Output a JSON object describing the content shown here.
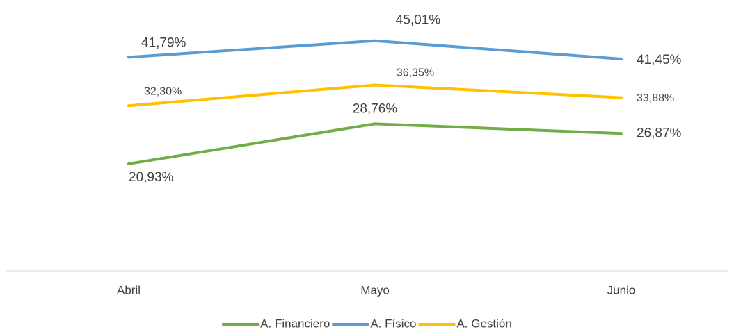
{
  "chart_data": {
    "type": "line",
    "categories": [
      "Abril",
      "Mayo",
      "Junio"
    ],
    "series": [
      {
        "name": "A. Financiero",
        "color": "#70ad47",
        "values": [
          20.93,
          28.76,
          26.87
        ],
        "value_labels": [
          "20,93%",
          "28,76%",
          "26,87%"
        ]
      },
      {
        "name": "A. Físico",
        "color": "#5b9bd5",
        "values": [
          41.79,
          45.01,
          41.45
        ],
        "value_labels": [
          "41,79%",
          "45,01%",
          "41,45%"
        ]
      },
      {
        "name": "A. Gestión",
        "color": "#ffc000",
        "values": [
          32.3,
          36.35,
          33.88
        ],
        "value_labels": [
          "32,30%",
          "36,35%",
          "33,88%"
        ]
      }
    ],
    "ylim": [
      0,
      50
    ],
    "legend": "bottom"
  }
}
